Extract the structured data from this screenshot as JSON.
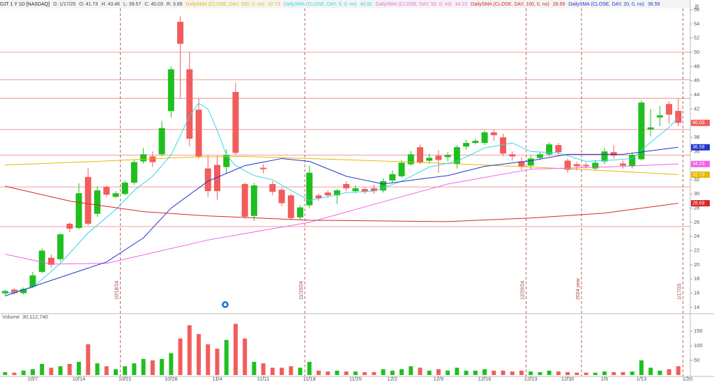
{
  "header": {
    "symbol": "DJT 1 Y 1D [NASDAQ]",
    "date": "D: 1/17/25",
    "quote": [
      {
        "label": "O:",
        "value": 41.73
      },
      {
        "label": "H:",
        "value": 43.46
      },
      {
        "label": "L:",
        "value": 39.57
      },
      {
        "label": "C:",
        "value": 40.03
      },
      {
        "label": "R:",
        "value": 3.89
      }
    ]
  },
  "chart_data": {
    "type": "candlestick",
    "up_color": "#1fbf1f",
    "down_color": "#f25c5c",
    "xlim": [
      -0.55,
      74.3
    ],
    "xticks": [
      {
        "value": 3,
        "label": "10/7"
      },
      {
        "value": 8,
        "label": "10/14"
      },
      {
        "value": 13,
        "label": "10/21"
      },
      {
        "value": 18,
        "label": "10/28"
      },
      {
        "value": 23,
        "label": "11/4"
      },
      {
        "value": 28,
        "label": "11/11"
      },
      {
        "value": 33,
        "label": "11/18"
      },
      {
        "value": 38,
        "label": "11/25"
      },
      {
        "value": 42,
        "label": "12/2"
      },
      {
        "value": 47,
        "label": "12/9"
      },
      {
        "value": 52,
        "label": "12/16"
      },
      {
        "value": 57,
        "label": "12/23"
      },
      {
        "value": 61,
        "label": "12/30"
      },
      {
        "value": 65,
        "label": "1/6"
      },
      {
        "value": 69,
        "label": "1/13"
      },
      {
        "value": 74,
        "label": "1/20"
      }
    ],
    "ylim": [
      13.1,
      56.2
    ],
    "yticks": [
      14,
      16,
      18,
      20,
      22,
      24,
      26,
      28,
      30,
      32,
      34,
      36,
      38,
      40,
      42,
      44,
      46,
      48,
      50,
      52,
      54,
      56
    ],
    "open": [
      16.0,
      16.5,
      16.0,
      16.9,
      19.0,
      21.0,
      20.8,
      25.8,
      25.2,
      32.4,
      27.2,
      31.0,
      29.6,
      30.0,
      31.6,
      34.6,
      35.3,
      35.6,
      41.7,
      54.3,
      47.6,
      41.9,
      33.6,
      34.1,
      33.8,
      44.4,
      31.4,
      26.9,
      33.7,
      31.4,
      30.6,
      29.8,
      26.7,
      28.4,
      29.8,
      30.2,
      29.8,
      31.4,
      30.4,
      30.7,
      30.8,
      30.5,
      31.9,
      32.5,
      34.2,
      36.6,
      34.7,
      35.4,
      35.2,
      34.2,
      36.7,
      37.2,
      37.2,
      38.7,
      38.0,
      35.6,
      34.6,
      34.0,
      35.1,
      35.6,
      36.9,
      34.7,
      34.2,
      34.1,
      33.6,
      34.6,
      35.9,
      34.3,
      33.9,
      34.9,
      39.1,
      40.8,
      42.7,
      41.73
    ],
    "high": [
      16.5,
      16.7,
      16.8,
      19.0,
      22.3,
      21.5,
      24.5,
      26.0,
      31.5,
      33.6,
      31.0,
      31.2,
      30.4,
      31.9,
      34.9,
      36.5,
      36.0,
      40.3,
      48.0,
      55.1,
      50.0,
      43.5,
      35.4,
      35.4,
      36.3,
      45.7,
      31.6,
      31.6,
      34.2,
      31.8,
      30.9,
      30.0,
      28.4,
      34.0,
      30.1,
      30.5,
      30.7,
      31.8,
      31.2,
      31.0,
      31.3,
      32.2,
      33.3,
      34.8,
      36.1,
      37.0,
      35.7,
      36.2,
      35.9,
      36.9,
      37.6,
      37.8,
      39.0,
      39.0,
      38.5,
      36.0,
      35.2,
      35.4,
      36.0,
      37.3,
      37.2,
      35.0,
      34.5,
      34.4,
      34.8,
      36.5,
      36.9,
      34.7,
      35.8,
      43.2,
      42.0,
      42.4,
      43.1,
      43.46
    ],
    "low": [
      15.7,
      15.8,
      15.8,
      16.7,
      18.8,
      19.6,
      20.5,
      24.6,
      25.0,
      25.5,
      26.8,
      29.6,
      29.4,
      29.8,
      31.3,
      34.3,
      33.8,
      35.3,
      40.8,
      43.5,
      36.7,
      35.0,
      29.6,
      29.2,
      32.8,
      35.5,
      26.5,
      26.2,
      32.9,
      29.8,
      28.3,
      26.3,
      26.4,
      28.0,
      29.0,
      29.5,
      28.6,
      30.4,
      30.1,
      30.0,
      30.0,
      30.2,
      31.6,
      32.3,
      34.0,
      34.2,
      34.3,
      33.0,
      34.6,
      33.6,
      36.3,
      37.0,
      36.9,
      37.5,
      35.4,
      34.7,
      33.4,
      33.5,
      34.8,
      35.3,
      35.5,
      33.0,
      33.3,
      33.6,
      33.3,
      34.2,
      35.0,
      33.6,
      33.6,
      34.7,
      38.1,
      39.6,
      39.9,
      39.57
    ],
    "close": [
      16.3,
      16.0,
      16.6,
      18.5,
      22.0,
      20.0,
      24.3,
      25.1,
      30.1,
      25.8,
      30.5,
      29.9,
      30.1,
      31.6,
      34.5,
      35.6,
      34.5,
      39.3,
      47.6,
      51.2,
      37.8,
      35.3,
      30.4,
      30.4,
      35.5,
      35.8,
      26.8,
      31.2,
      33.5,
      30.3,
      28.7,
      26.6,
      28.1,
      33.0,
      29.4,
      29.8,
      30.5,
      30.8,
      30.8,
      30.3,
      30.4,
      31.8,
      32.8,
      34.4,
      35.6,
      34.4,
      35.1,
      34.8,
      35.5,
      36.6,
      37.2,
      37.5,
      38.7,
      38.3,
      35.7,
      35.3,
      33.9,
      35.0,
      35.6,
      37.0,
      35.9,
      33.4,
      33.9,
      33.9,
      34.4,
      36.0,
      35.4,
      34.0,
      35.5,
      42.9,
      39.4,
      41.1,
      41.2,
      40.03
    ],
    "series": [
      {
        "name": "DailySMA (CLOSE, DAY, 200, 0, no)",
        "color": "#e6b800",
        "price_tag": true,
        "x": [
          0,
          10,
          20,
          26,
          33,
          42,
          50,
          57,
          65,
          73
        ],
        "values": [
          34.1,
          34.6,
          35.2,
          35.3,
          35.0,
          34.6,
          34.2,
          33.8,
          33.3,
          32.73
        ]
      },
      {
        "name": "DailySMA (CLOSE, DAY, 5, 0, no)",
        "color": "#33d6e6",
        "price_tag": false,
        "x": [
          0,
          3,
          6,
          9,
          12,
          14,
          16,
          18,
          20,
          21,
          22,
          23,
          24,
          25,
          27,
          29,
          31,
          33,
          35,
          37,
          40,
          43,
          46,
          49,
          52,
          55,
          57,
          60,
          63,
          66,
          68,
          70,
          72,
          73
        ],
        "values": [
          15.9,
          16.8,
          20.2,
          24.5,
          27.8,
          30.5,
          32.5,
          35.5,
          41.0,
          42.8,
          42.0,
          39.0,
          35.5,
          34.0,
          32.6,
          32.0,
          30.5,
          29.1,
          29.6,
          30.2,
          30.4,
          31.8,
          33.8,
          34.6,
          36.5,
          37.2,
          36.0,
          35.8,
          34.6,
          34.8,
          35.0,
          37.3,
          39.4,
          40.82
        ]
      },
      {
        "name": "DailySMA (CLOSE, DAY, 50, 0, no)",
        "color": "#f062e6",
        "price_tag": true,
        "x": [
          0,
          5,
          11,
          15,
          22,
          33,
          41,
          48,
          57,
          65,
          73
        ],
        "values": [
          21.5,
          20.1,
          20.2,
          21.4,
          23.5,
          26.0,
          28.9,
          31.4,
          33.5,
          33.8,
          34.23
        ]
      },
      {
        "name": "DailySMA (CLOSE, DAY, 100, 0, no)",
        "color": "#d92626",
        "price_tag": true,
        "x": [
          0,
          7,
          15,
          22,
          33,
          48,
          57,
          65,
          73
        ],
        "values": [
          31.1,
          29.0,
          27.5,
          26.9,
          26.3,
          26.1,
          26.6,
          27.3,
          28.69
        ]
      },
      {
        "name": "DailySMA (CLOSE, DAY, 20, 0, no)",
        "color": "#2233cc",
        "price_tag": true,
        "x": [
          0,
          5,
          11,
          15,
          18,
          22,
          26,
          30,
          33,
          37,
          41,
          45,
          48,
          52,
          57,
          61,
          67,
          73
        ],
        "values": [
          15.6,
          17.8,
          20.4,
          23.8,
          28.0,
          31.8,
          34.0,
          35.0,
          34.6,
          32.5,
          31.4,
          32.1,
          32.6,
          33.9,
          34.7,
          35.6,
          35.6,
          36.59
        ]
      }
    ],
    "levels": [
      50.0,
      46.1,
      43.5,
      39.1,
      35.5,
      31.0,
      25.4
    ],
    "markers": [
      {
        "x": 12.5,
        "label": "10/18/24"
      },
      {
        "x": 32.5,
        "label": "11/15/24"
      },
      {
        "x": 56.5,
        "label": "12/20/24"
      },
      {
        "x": 62.5,
        "label": "2024 year"
      },
      {
        "x": 73.5,
        "label": "1/17/25"
      }
    ],
    "volume_title": "Volume",
    "volume_text": "30,112,740",
    "volume": [
      10,
      8,
      15,
      20,
      38,
      25,
      30,
      38,
      45,
      105,
      40,
      30,
      20,
      30,
      40,
      55,
      50,
      55,
      75,
      125,
      170,
      140,
      105,
      90,
      120,
      175,
      125,
      45,
      40,
      25,
      25,
      30,
      25,
      45,
      15,
      12,
      15,
      12,
      12,
      10,
      10,
      20,
      15,
      20,
      30,
      25,
      15,
      20,
      15,
      25,
      15,
      15,
      20,
      15,
      15,
      12,
      15,
      12,
      10,
      15,
      12,
      10,
      8,
      8,
      8,
      12,
      10,
      10,
      12,
      50,
      25,
      15,
      20,
      30.11274
    ],
    "vlim": [
      0,
      181
    ],
    "vticks": [
      50,
      100,
      150
    ]
  }
}
